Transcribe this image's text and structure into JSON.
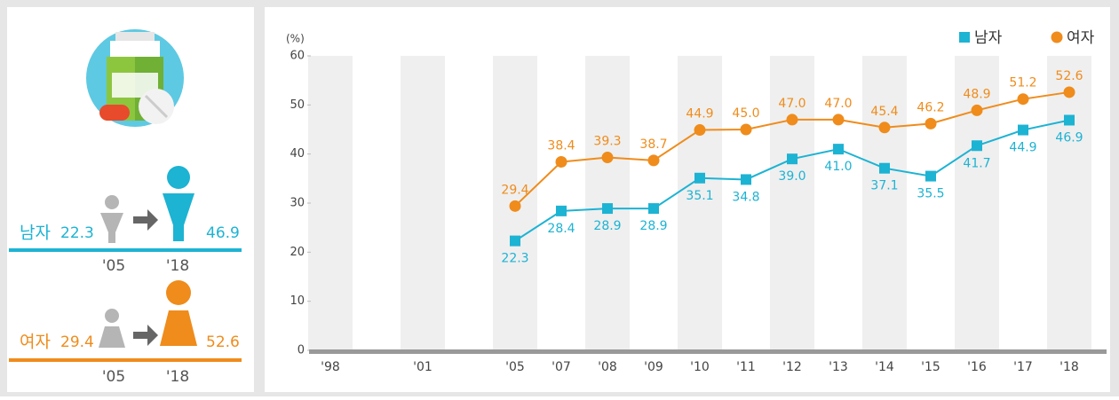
{
  "chart_data": {
    "type": "line",
    "y_label": "(%)",
    "categories": [
      "'98",
      "'01",
      "'05",
      "'07",
      "'08",
      "'09",
      "'10",
      "'11",
      "'12",
      "'13",
      "'14",
      "'15",
      "'16",
      "'17",
      "'18"
    ],
    "series": [
      {
        "name": "남자",
        "color": "#1db3d3",
        "marker": "square",
        "values": [
          null,
          null,
          22.3,
          28.4,
          28.9,
          28.9,
          35.1,
          34.8,
          39.0,
          41.0,
          37.1,
          35.5,
          41.7,
          44.9,
          46.9
        ],
        "value_labels": [
          null,
          null,
          "22.3",
          "28.4",
          "28.9",
          "28.9",
          "35.1",
          "34.8",
          "39.0",
          "41.0",
          "37.1",
          "35.5",
          "41.7",
          "44.9",
          "46.9"
        ]
      },
      {
        "name": "여자",
        "color": "#ef8c1c",
        "marker": "circle",
        "values": [
          null,
          null,
          29.4,
          38.4,
          39.3,
          38.7,
          44.9,
          45.0,
          47.0,
          47.0,
          45.4,
          46.2,
          48.9,
          51.2,
          52.6
        ],
        "value_labels": [
          null,
          null,
          "29.4",
          "38.4",
          "39.3",
          "38.7",
          "44.9",
          "45.0",
          "47.0",
          "47.0",
          "45.4",
          "46.2",
          "48.9",
          "51.2",
          "52.6"
        ]
      }
    ],
    "ylim": [
      0,
      60
    ],
    "yticks": [
      0,
      10,
      20,
      30,
      40,
      50,
      60
    ],
    "legend": "top-right"
  }
}
